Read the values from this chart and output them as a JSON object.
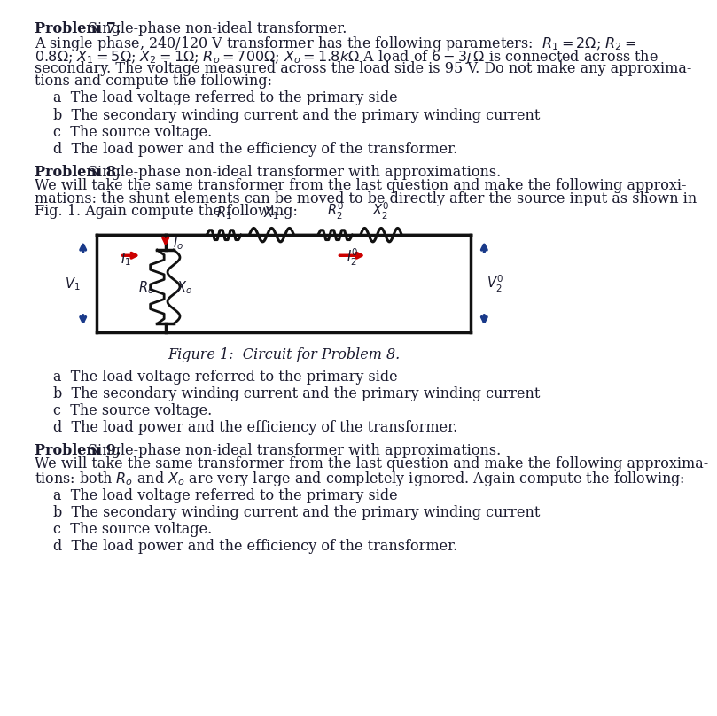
{
  "bg_color": "#ffffff",
  "text_color": "#1a1a2e",
  "fig_caption": "Figure 1:  Circuit for Problem 8.",
  "p7_bold": "Problem 7.",
  "p7_title": " Single-phase non-ideal transformer.",
  "p7_body1a": "A single phase, 240/120 V transformer has the following parameters:  ",
  "p7_body1b": "$R_1 = 2\\Omega$; $R_2 =$",
  "p7_body2": "$0.8\\Omega$; $X_1 = 5\\Omega$; $X_2 = 1\\Omega$; $R_o = 700\\Omega$; $X_o = 1.8k\\Omega$ A load of $6 - 3j\\,\\Omega$ is connected across the",
  "p7_body3": "secondary. The voltage measured across the load side is 95 V. Do not make any approxima-",
  "p7_body4": "tions and compute the following:",
  "p7_a": "a  The load voltage referred to the primary side",
  "p7_b": "b  The secondary winding current and the primary winding current",
  "p7_c": "c  The source voltage.",
  "p7_d": "d  The load power and the efficiency of the transformer.",
  "p8_bold": "Problem 8.",
  "p8_title": " Single-phase non-ideal transformer with approximations.",
  "p8_body1": "We will take the same transformer from the last question and make the following approxi-",
  "p8_body2": "mations: the shunt elements can be moved to be directly after the source input as shown in",
  "p8_body3": "Fig. 1. Again compute the following:",
  "p8_a": "a  The load voltage referred to the primary side",
  "p8_b": "b  The secondary winding current and the primary winding current",
  "p8_c": "c  The source voltage.",
  "p8_d": "d  The load power and the efficiency of the transformer.",
  "p9_bold": "Problem 9.",
  "p9_title": " Single-phase non-ideal transformer with approximations.",
  "p9_body1": "We will take the same transformer from the last question and make the following approxima-",
  "p9_body2": "tions: both $R_o$ and $X_o$ are very large and completely ignored. Again compute the following:",
  "p9_a": "a  The load voltage referred to the primary side",
  "p9_b": "b  The secondary winding current and the primary winding current",
  "p9_c": "c  The source voltage.",
  "p9_d": "d  The load power and the efficiency of the transformer.",
  "wire_color": "#111111",
  "red_color": "#cc0000",
  "blue_color": "#1a3a8a"
}
